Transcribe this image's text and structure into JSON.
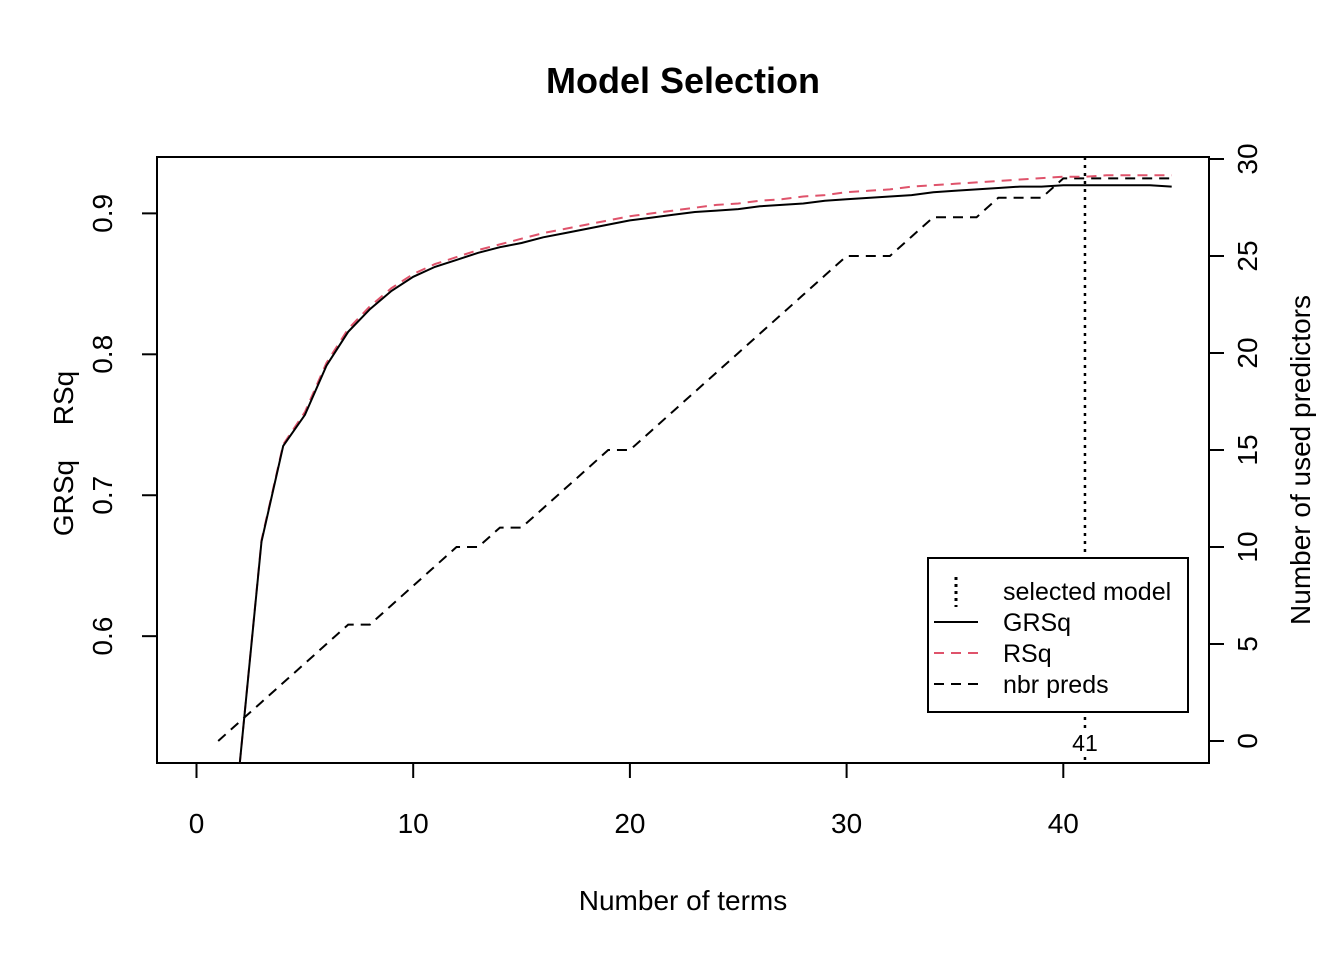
{
  "chart_data": {
    "type": "line",
    "title": "Model Selection",
    "xlabel": "Number of terms",
    "ylabel_left": [
      "GRSq",
      "RSq"
    ],
    "ylabel_right": "Number of used predictors",
    "xlim": [
      0,
      46
    ],
    "ylim_left": [
      0.51,
      0.94
    ],
    "ylim_right": [
      0,
      30
    ],
    "x_ticks": [
      0,
      10,
      20,
      30,
      40
    ],
    "y_left_ticks": [
      0.6,
      0.7,
      0.8,
      0.9
    ],
    "y_right_ticks": [
      0,
      5,
      10,
      15,
      20,
      25,
      30
    ],
    "selected_model": 41,
    "selected_label": "41",
    "grid": false,
    "legend_position": "bottom-right",
    "series": [
      {
        "name": "GRSq",
        "axis": "left",
        "style": "solid",
        "color": "#000000",
        "x": [
          2,
          3,
          4,
          5,
          6,
          7,
          8,
          9,
          10,
          11,
          12,
          13,
          14,
          15,
          16,
          17,
          18,
          19,
          20,
          21,
          22,
          23,
          24,
          25,
          26,
          27,
          28,
          29,
          30,
          31,
          32,
          33,
          34,
          35,
          36,
          37,
          38,
          39,
          40,
          41,
          42,
          43,
          44,
          45
        ],
        "values": [
          0.51,
          0.667,
          0.735,
          0.757,
          0.792,
          0.816,
          0.832,
          0.845,
          0.855,
          0.862,
          0.867,
          0.872,
          0.876,
          0.879,
          0.883,
          0.886,
          0.889,
          0.892,
          0.895,
          0.897,
          0.899,
          0.901,
          0.902,
          0.903,
          0.905,
          0.906,
          0.907,
          0.909,
          0.91,
          0.911,
          0.912,
          0.913,
          0.915,
          0.916,
          0.917,
          0.918,
          0.919,
          0.919,
          0.92,
          0.92,
          0.92,
          0.92,
          0.92,
          0.919
        ]
      },
      {
        "name": "RSq",
        "axis": "left",
        "style": "dashed",
        "color": "#DF536B",
        "x": [
          2,
          3,
          4,
          5,
          6,
          7,
          8,
          9,
          10,
          11,
          12,
          13,
          14,
          15,
          16,
          17,
          18,
          19,
          20,
          21,
          22,
          23,
          24,
          25,
          26,
          27,
          28,
          29,
          30,
          31,
          32,
          33,
          34,
          35,
          36,
          37,
          38,
          39,
          40,
          41,
          42,
          43,
          44,
          45
        ],
        "values": [
          0.51,
          0.668,
          0.736,
          0.759,
          0.794,
          0.818,
          0.834,
          0.847,
          0.857,
          0.864,
          0.869,
          0.874,
          0.878,
          0.882,
          0.886,
          0.889,
          0.892,
          0.895,
          0.898,
          0.9,
          0.902,
          0.904,
          0.906,
          0.907,
          0.909,
          0.91,
          0.912,
          0.913,
          0.915,
          0.916,
          0.917,
          0.919,
          0.92,
          0.921,
          0.922,
          0.923,
          0.924,
          0.925,
          0.926,
          0.926,
          0.927,
          0.927,
          0.927,
          0.927
        ]
      },
      {
        "name": "nbr preds",
        "axis": "right",
        "style": "dashed",
        "color": "#000000",
        "x": [
          1,
          2,
          3,
          4,
          5,
          6,
          7,
          8,
          9,
          10,
          11,
          12,
          13,
          14,
          15,
          16,
          17,
          18,
          19,
          20,
          21,
          22,
          23,
          24,
          25,
          26,
          27,
          28,
          29,
          30,
          31,
          32,
          33,
          34,
          35,
          36,
          37,
          38,
          39,
          40,
          41,
          42,
          43,
          44,
          45
        ],
        "values": [
          0,
          1,
          2,
          3,
          4,
          5,
          6,
          6,
          7,
          8,
          9,
          10,
          10,
          11,
          11,
          12,
          13,
          14,
          15,
          15,
          16,
          17,
          18,
          19,
          20,
          21,
          22,
          23,
          24,
          25,
          25,
          25,
          26,
          27,
          27,
          27,
          28,
          28,
          28,
          29,
          29,
          29,
          29,
          29,
          29
        ]
      }
    ],
    "legend": [
      {
        "label": "selected model",
        "style": "dotted-vertical"
      },
      {
        "label": "GRSq",
        "style": "solid",
        "color": "#000000"
      },
      {
        "label": "RSq",
        "style": "dashed",
        "color": "#DF536B"
      },
      {
        "label": "nbr preds",
        "style": "dashed",
        "color": "#000000"
      }
    ]
  }
}
